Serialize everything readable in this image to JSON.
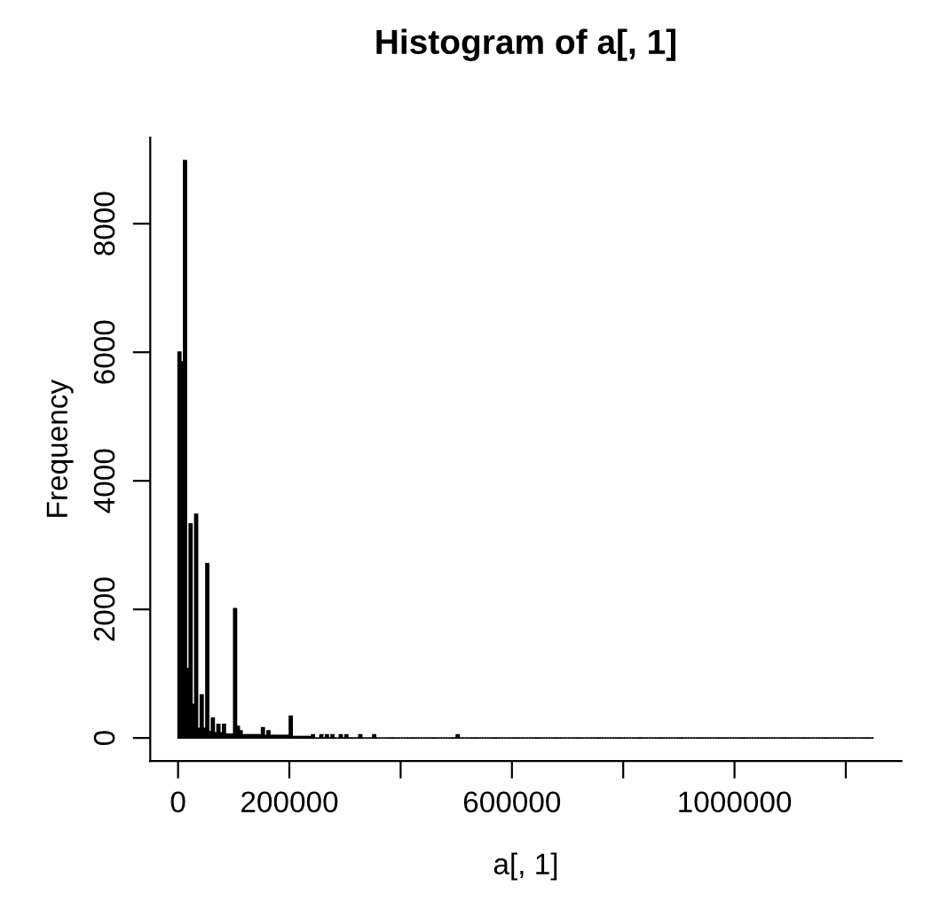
{
  "chart_data": {
    "type": "histogram",
    "title": "Histogram of a[, 1]",
    "xlabel": "a[, 1]",
    "ylabel": "Frequency",
    "color": "#000000",
    "bins": [
      0,
      5000,
      10000,
      15000,
      20000,
      25000,
      30000,
      35000,
      40000,
      45000,
      50000,
      55000,
      60000,
      65000,
      70000,
      75000,
      80000,
      85000,
      90000,
      95000,
      100000,
      105000,
      110000,
      115000,
      120000,
      125000,
      130000,
      135000,
      140000,
      145000,
      150000,
      155000,
      160000,
      165000,
      170000,
      175000,
      180000,
      185000,
      190000,
      195000,
      200000,
      205000,
      210000,
      215000,
      220000,
      225000,
      230000,
      235000,
      240000,
      245000,
      250000,
      255000,
      260000,
      265000,
      270000,
      275000,
      280000,
      285000,
      290000,
      295000,
      300000,
      305000,
      310000,
      315000,
      320000,
      325000,
      330000,
      335000,
      340000,
      345000,
      350000,
      355000,
      360000,
      365000,
      370000,
      375000,
      380000,
      385000,
      390000,
      395000,
      400000,
      405000,
      410000,
      415000,
      420000,
      425000,
      430000,
      435000,
      440000,
      445000,
      450000,
      455000,
      460000,
      465000,
      470000,
      475000,
      480000,
      485000,
      490000,
      495000,
      500000,
      505000,
      510000,
      515000,
      520000,
      525000,
      530000,
      535000,
      540000,
      545000,
      550000,
      555000,
      560000,
      565000,
      570000,
      575000,
      580000,
      585000,
      590000,
      595000,
      600000,
      605000,
      610000,
      615000,
      620000,
      625000,
      630000,
      635000,
      640000,
      645000,
      650000,
      655000,
      660000,
      665000,
      670000,
      675000,
      680000,
      685000,
      690000,
      695000,
      700000,
      705000,
      710000,
      715000,
      720000,
      725000,
      730000,
      735000,
      740000,
      745000,
      750000,
      755000,
      760000,
      765000,
      770000,
      775000,
      780000,
      785000,
      790000,
      795000,
      800000,
      805000,
      810000,
      815000,
      820000,
      825000,
      830000,
      835000,
      840000,
      845000,
      850000,
      855000,
      860000,
      865000,
      870000,
      875000,
      880000,
      885000,
      890000,
      895000,
      900000,
      905000,
      910000,
      915000,
      920000,
      925000,
      930000,
      935000,
      940000,
      945000,
      950000,
      955000,
      960000,
      965000,
      970000,
      975000,
      980000,
      985000,
      990000,
      995000,
      1000000,
      1005000,
      1010000,
      1015000,
      1020000,
      1025000,
      1030000,
      1035000,
      1040000,
      1045000,
      1050000,
      1055000,
      1060000,
      1065000,
      1070000,
      1075000,
      1080000,
      1085000,
      1090000,
      1095000,
      1100000,
      1105000,
      1110000,
      1115000,
      1120000,
      1125000,
      1130000,
      1135000,
      1140000,
      1145000,
      1150000,
      1155000,
      1160000,
      1165000,
      1170000,
      1175000,
      1180000,
      1185000,
      1190000,
      1195000,
      1200000,
      1205000,
      1210000,
      1215000,
      1220000,
      1225000,
      1230000,
      1235000,
      1240000,
      1245000,
      1250000
    ],
    "values": [
      6000,
      5850,
      8980,
      1080,
      3330,
      520,
      3480,
      150,
      670,
      150,
      2710,
      100,
      310,
      80,
      210,
      80,
      210,
      60,
      60,
      60,
      2010,
      180,
      110,
      50,
      50,
      50,
      50,
      50,
      50,
      50,
      160,
      40,
      110,
      40,
      40,
      40,
      40,
      40,
      40,
      40,
      340,
      20,
      20,
      20,
      20,
      20,
      20,
      20,
      50,
      0,
      0,
      50,
      0,
      50,
      0,
      50,
      0,
      0,
      50,
      0,
      50,
      0,
      0,
      0,
      0,
      50,
      0,
      0,
      0,
      0,
      50,
      0,
      0,
      0,
      0,
      0,
      0,
      0,
      0,
      0,
      0,
      0,
      0,
      0,
      0,
      0,
      0,
      0,
      0,
      0,
      0,
      0,
      0,
      0,
      0,
      0,
      0,
      0,
      0,
      0,
      50,
      0,
      0,
      0,
      0,
      0,
      0,
      0,
      0,
      0,
      0,
      0,
      0,
      0,
      0,
      0,
      0,
      0,
      0,
      0,
      0,
      0,
      0,
      0,
      0,
      0,
      0,
      0,
      0,
      0,
      0,
      0,
      0,
      0,
      0,
      0,
      0,
      0,
      0,
      0,
      0,
      0,
      0,
      0,
      0,
      0,
      0,
      0,
      0,
      0,
      0,
      0,
      0,
      0,
      0,
      0,
      0,
      0,
      0,
      0,
      0,
      0,
      0,
      0,
      0,
      0,
      0,
      0,
      0,
      0,
      0,
      0,
      0,
      0,
      0,
      0,
      0,
      0,
      0,
      0,
      0,
      0,
      0,
      0,
      0,
      0,
      0,
      0,
      0,
      0,
      0,
      0,
      0,
      0,
      0,
      0,
      0,
      0,
      0,
      0,
      0,
      0,
      0,
      0,
      0,
      0,
      0,
      0,
      0,
      0,
      0,
      0,
      0,
      0,
      0,
      0,
      0,
      0,
      0,
      0,
      0,
      0,
      0,
      0,
      0,
      0,
      0,
      0,
      0,
      0,
      0,
      0,
      0,
      0,
      0,
      0,
      0,
      0,
      0,
      0,
      0,
      0,
      0,
      0,
      0,
      0,
      0,
      0,
      0,
      0
    ],
    "xlim": [
      -50000,
      1300000
    ],
    "ylim": [
      -360,
      9340
    ],
    "xticks": [
      0,
      200000,
      {
        "value": 400000,
        "label": null
      },
      600000,
      {
        "value": 800000,
        "label": null
      },
      1000000,
      {
        "value": 1200000,
        "label": null
      }
    ],
    "yticks": [
      0,
      2000,
      4000,
      6000,
      8000
    ],
    "grid": false
  }
}
